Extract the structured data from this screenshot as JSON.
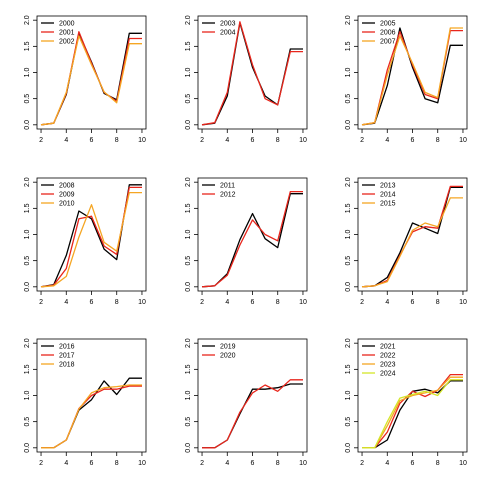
{
  "colors": {
    "black": "#000000",
    "red": "#e8261c",
    "orange": "#f5a623",
    "yellowgreen": "#d4e62a"
  },
  "chart_data": [
    {
      "type": "line",
      "xlim": [
        2,
        10
      ],
      "ylim": [
        0,
        2
      ],
      "x_ticks": [
        "2",
        "4",
        "6",
        "8",
        "10"
      ],
      "y_ticks": [
        "0.0",
        "0.5",
        "1.0",
        "1.5",
        "2.0"
      ],
      "x": [
        2,
        3,
        4,
        5,
        6,
        7,
        8,
        9,
        10
      ],
      "legend_position": "top-left",
      "series": [
        {
          "name": "2000",
          "color": "#000000",
          "values": [
            0.0,
            0.03,
            0.58,
            1.75,
            1.2,
            0.6,
            0.48,
            1.75,
            1.75
          ]
        },
        {
          "name": "2001",
          "color": "#e8261c",
          "values": [
            0.0,
            0.03,
            0.6,
            1.78,
            1.18,
            0.62,
            0.45,
            1.65,
            1.65
          ]
        },
        {
          "name": "2002",
          "color": "#f5a623",
          "values": [
            0.0,
            0.03,
            0.62,
            1.7,
            1.15,
            0.63,
            0.42,
            1.55,
            1.55
          ]
        }
      ]
    },
    {
      "type": "line",
      "xlim": [
        2,
        10
      ],
      "ylim": [
        0,
        2
      ],
      "x_ticks": [
        "2",
        "4",
        "6",
        "8",
        "10"
      ],
      "y_ticks": [
        "0.0",
        "0.5",
        "1.0",
        "1.5",
        "2.0"
      ],
      "x": [
        2,
        3,
        4,
        5,
        6,
        7,
        8,
        9,
        10
      ],
      "legend_position": "top-left",
      "series": [
        {
          "name": "2003",
          "color": "#000000",
          "values": [
            0.0,
            0.03,
            0.55,
            1.95,
            1.1,
            0.55,
            0.38,
            1.45,
            1.45
          ]
        },
        {
          "name": "2004",
          "color": "#e8261c",
          "values": [
            0.0,
            0.04,
            0.62,
            1.97,
            1.15,
            0.5,
            0.38,
            1.4,
            1.4
          ]
        }
      ]
    },
    {
      "type": "line",
      "xlim": [
        2,
        10
      ],
      "ylim": [
        0,
        2
      ],
      "x_ticks": [
        "2",
        "4",
        "6",
        "8",
        "10"
      ],
      "y_ticks": [
        "0.0",
        "0.5",
        "1.0",
        "1.5",
        "2.0"
      ],
      "x": [
        2,
        3,
        4,
        5,
        6,
        7,
        8,
        9,
        10
      ],
      "legend_position": "top-left",
      "series": [
        {
          "name": "2005",
          "color": "#000000",
          "values": [
            0.0,
            0.03,
            0.75,
            1.85,
            1.1,
            0.5,
            0.42,
            1.52,
            1.52
          ]
        },
        {
          "name": "2006",
          "color": "#e8261c",
          "values": [
            0.0,
            0.04,
            1.05,
            1.78,
            1.15,
            0.58,
            0.5,
            1.8,
            1.8
          ]
        },
        {
          "name": "2007",
          "color": "#f5a623",
          "values": [
            0.0,
            0.04,
            0.95,
            1.7,
            1.18,
            0.62,
            0.52,
            1.85,
            1.85
          ]
        }
      ]
    },
    {
      "type": "line",
      "xlim": [
        2,
        10
      ],
      "ylim": [
        0,
        2
      ],
      "x_ticks": [
        "2",
        "4",
        "6",
        "8",
        "10"
      ],
      "y_ticks": [
        "0.0",
        "0.5",
        "1.0",
        "1.5",
        "2.0"
      ],
      "x": [
        2,
        3,
        4,
        5,
        6,
        7,
        8,
        9,
        10
      ],
      "legend_position": "top-left",
      "series": [
        {
          "name": "2008",
          "color": "#000000",
          "values": [
            0.0,
            0.04,
            0.6,
            1.45,
            1.3,
            0.72,
            0.52,
            1.95,
            1.95
          ]
        },
        {
          "name": "2009",
          "color": "#e8261c",
          "values": [
            0.0,
            0.03,
            0.35,
            1.3,
            1.35,
            0.78,
            0.62,
            1.9,
            1.9
          ]
        },
        {
          "name": "2010",
          "color": "#f5a623",
          "values": [
            0.0,
            0.02,
            0.2,
            0.95,
            1.57,
            0.85,
            0.68,
            1.8,
            1.8
          ]
        }
      ]
    },
    {
      "type": "line",
      "xlim": [
        2,
        10
      ],
      "ylim": [
        0,
        2
      ],
      "x_ticks": [
        "2",
        "4",
        "6",
        "8",
        "10"
      ],
      "y_ticks": [
        "0.0",
        "0.5",
        "1.0",
        "1.5",
        "2.0"
      ],
      "x": [
        2,
        3,
        4,
        5,
        6,
        7,
        8,
        9,
        10
      ],
      "legend_position": "top-left",
      "series": [
        {
          "name": "2011",
          "color": "#000000",
          "values": [
            0.0,
            0.02,
            0.25,
            0.9,
            1.4,
            0.92,
            0.75,
            1.78,
            1.78
          ]
        },
        {
          "name": "2012",
          "color": "#e8261c",
          "values": [
            0.0,
            0.02,
            0.22,
            0.8,
            1.28,
            1.0,
            0.88,
            1.82,
            1.82
          ]
        }
      ]
    },
    {
      "type": "line",
      "xlim": [
        2,
        10
      ],
      "ylim": [
        0,
        2
      ],
      "x_ticks": [
        "2",
        "4",
        "6",
        "8",
        "10"
      ],
      "y_ticks": [
        "0.0",
        "0.5",
        "1.0",
        "1.5",
        "2.0"
      ],
      "x": [
        2,
        3,
        4,
        5,
        6,
        7,
        8,
        9,
        10
      ],
      "legend_position": "top-left",
      "series": [
        {
          "name": "2013",
          "color": "#000000",
          "values": [
            0.0,
            0.02,
            0.18,
            0.65,
            1.22,
            1.12,
            1.02,
            1.9,
            1.9
          ]
        },
        {
          "name": "2014",
          "color": "#e8261c",
          "values": [
            0.0,
            0.02,
            0.12,
            0.6,
            1.05,
            1.15,
            1.12,
            1.92,
            1.92
          ]
        },
        {
          "name": "2015",
          "color": "#f5a623",
          "values": [
            0.0,
            0.02,
            0.1,
            0.58,
            1.08,
            1.22,
            1.15,
            1.7,
            1.7
          ]
        }
      ]
    },
    {
      "type": "line",
      "xlim": [
        2,
        10
      ],
      "ylim": [
        0,
        2
      ],
      "x_ticks": [
        "2",
        "4",
        "6",
        "8",
        "10"
      ],
      "y_ticks": [
        "0.0",
        "0.5",
        "1.0",
        "1.5",
        "2.0"
      ],
      "x": [
        2,
        3,
        4,
        5,
        6,
        7,
        8,
        9,
        10
      ],
      "legend_position": "top-left",
      "series": [
        {
          "name": "2016",
          "color": "#000000",
          "values": [
            0.0,
            0.0,
            0.15,
            0.72,
            0.92,
            1.28,
            1.02,
            1.33,
            1.33
          ]
        },
        {
          "name": "2017",
          "color": "#e8261c",
          "values": [
            0.0,
            0.0,
            0.15,
            0.75,
            1.0,
            1.12,
            1.12,
            1.18,
            1.18
          ]
        },
        {
          "name": "2018",
          "color": "#f5a623",
          "values": [
            0.0,
            0.0,
            0.15,
            0.74,
            1.05,
            1.15,
            1.17,
            1.2,
            1.2
          ]
        }
      ]
    },
    {
      "type": "line",
      "xlim": [
        2,
        10
      ],
      "ylim": [
        0,
        2
      ],
      "x_ticks": [
        "2",
        "4",
        "6",
        "8",
        "10"
      ],
      "y_ticks": [
        "0.0",
        "0.5",
        "1.0",
        "1.5",
        "2.0"
      ],
      "x": [
        2,
        3,
        4,
        5,
        6,
        7,
        8,
        9,
        10
      ],
      "legend_position": "top-left",
      "series": [
        {
          "name": "2019",
          "color": "#000000",
          "values": [
            0.0,
            0.0,
            0.15,
            0.65,
            1.12,
            1.12,
            1.15,
            1.22,
            1.22
          ]
        },
        {
          "name": "2020",
          "color": "#e8261c",
          "values": [
            0.0,
            0.0,
            0.15,
            0.68,
            1.05,
            1.2,
            1.08,
            1.3,
            1.3
          ]
        }
      ]
    },
    {
      "type": "line",
      "xlim": [
        2,
        10
      ],
      "ylim": [
        0,
        2
      ],
      "x_ticks": [
        "2",
        "4",
        "6",
        "8",
        "10"
      ],
      "y_ticks": [
        "0.0",
        "0.5",
        "1.0",
        "1.5",
        "2.0"
      ],
      "x": [
        2,
        3,
        4,
        5,
        6,
        7,
        8,
        9,
        10
      ],
      "legend_position": "top-left",
      "series": [
        {
          "name": "2021",
          "color": "#000000",
          "values": [
            0.0,
            0.0,
            0.15,
            0.72,
            1.08,
            1.12,
            1.05,
            1.28,
            1.28
          ]
        },
        {
          "name": "2022",
          "color": "#e8261c",
          "values": [
            0.0,
            0.0,
            0.3,
            0.85,
            1.08,
            0.98,
            1.1,
            1.4,
            1.4
          ]
        },
        {
          "name": "2023",
          "color": "#f5a623",
          "values": [
            0.0,
            0.0,
            0.42,
            0.9,
            1.0,
            1.05,
            1.1,
            1.35,
            1.35
          ]
        },
        {
          "name": "2024",
          "color": "#d4e62a",
          "values": [
            0.0,
            0.0,
            0.5,
            0.95,
            1.02,
            1.08,
            1.0,
            1.3,
            1.3
          ]
        }
      ]
    }
  ]
}
